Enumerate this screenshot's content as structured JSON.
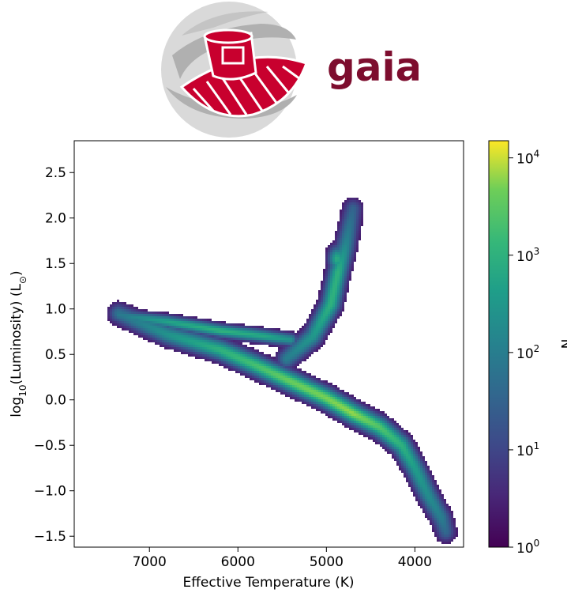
{
  "logo": {
    "wordmark": "gaia",
    "color": "#7d0d2e"
  },
  "chart_data": {
    "type": "heatmap",
    "title": "",
    "xlabel": "Effective Temperature (K)",
    "ylabel_base": "log",
    "ylabel_sub": "10",
    "ylabel_rest": "(Luminosity) (L",
    "ylabel_sun": "⊙",
    "ylabel_close": ")",
    "x_inverted": true,
    "xlim": [
      7850,
      3450
    ],
    "ylim": [
      -1.62,
      2.85
    ],
    "x_ticks": [
      7000,
      6000,
      5000,
      4000
    ],
    "x_tick_labels": [
      "7000",
      "6000",
      "5000",
      "4000"
    ],
    "y_ticks": [
      2.5,
      2.0,
      1.5,
      1.0,
      0.5,
      0.0,
      -0.5,
      -1.0,
      -1.5
    ],
    "y_tick_labels": [
      "2.5",
      "2.0",
      "1.5",
      "1.0",
      "0.5",
      "0.0",
      "−0.5",
      "−1.0",
      "−1.5"
    ],
    "colormap": "viridis",
    "colorbar": {
      "label": "N",
      "scale": "log",
      "range": [
        1,
        15000
      ],
      "ticks": [
        1,
        10,
        100,
        1000,
        10000
      ],
      "tick_base": "10",
      "tick_exps": [
        "0",
        "1",
        "2",
        "3",
        "4"
      ]
    },
    "main_sequence": {
      "points": [
        [
          7350,
          0.95
        ],
        [
          6800,
          0.72
        ],
        [
          6200,
          0.55
        ],
        [
          5800,
          0.38
        ],
        [
          5400,
          0.2
        ],
        [
          5000,
          0.02
        ],
        [
          4700,
          -0.15
        ],
        [
          4400,
          -0.3
        ],
        [
          4150,
          -0.5
        ],
        [
          4000,
          -0.75
        ],
        [
          3850,
          -1.05
        ],
        [
          3700,
          -1.3
        ],
        [
          3650,
          -1.45
        ]
      ],
      "peak_log_n": [
        1.8,
        2.4,
        3.0,
        3.3,
        3.6,
        3.7,
        3.8,
        3.4,
        3.0,
        2.6,
        2.3,
        2.0,
        1.6
      ]
    },
    "upper_branch": {
      "points": [
        [
          7350,
          0.93
        ],
        [
          6800,
          0.86
        ],
        [
          6200,
          0.76
        ],
        [
          5700,
          0.7
        ],
        [
          5400,
          0.66
        ]
      ],
      "peak_log_n": [
        1.9,
        2.7,
        3.0,
        2.8,
        2.4
      ]
    },
    "giant_branch": {
      "points": [
        [
          5450,
          0.45
        ],
        [
          5150,
          0.7
        ],
        [
          4950,
          1.05
        ],
        [
          4870,
          1.4
        ],
        [
          4780,
          1.7
        ],
        [
          4700,
          2.1
        ]
      ],
      "peak_log_n": [
        2.0,
        2.5,
        3.0,
        3.0,
        2.2,
        1.5
      ]
    },
    "red_clump": {
      "x": 4880,
      "y": 1.55,
      "peak_log_n": 2.9
    }
  }
}
